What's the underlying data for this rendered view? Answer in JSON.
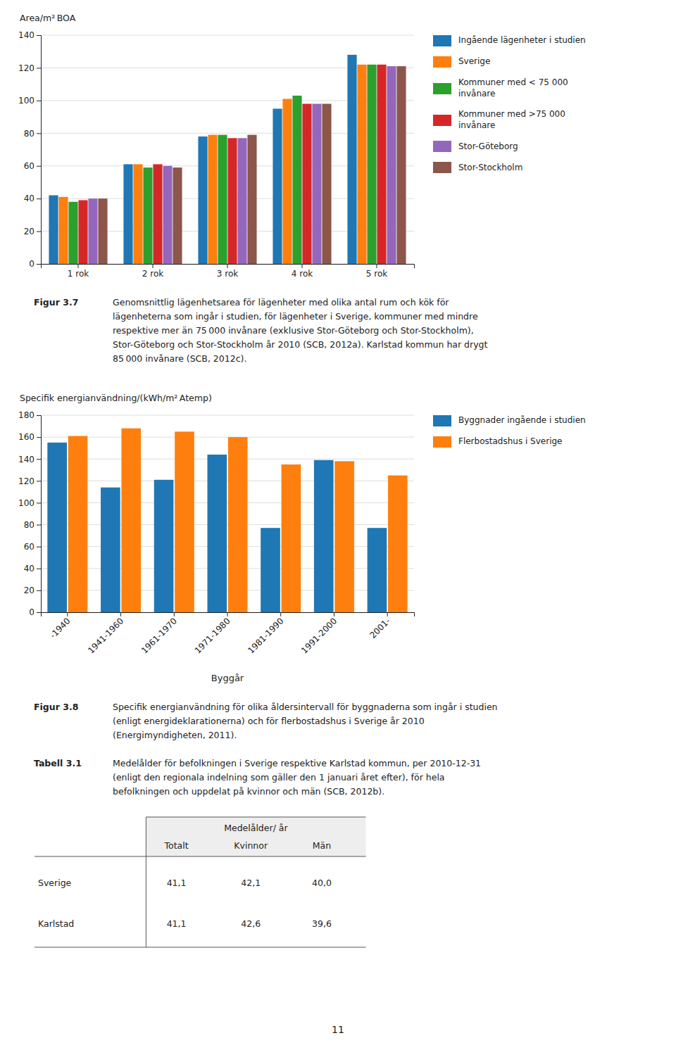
{
  "chart_data": [
    {
      "type": "bar",
      "ylabel": "Area/m² BOA",
      "categories": [
        "1 rok",
        "2 rok",
        "3 rok",
        "4 rok",
        "5 rok"
      ],
      "series": [
        {
          "name": "Ingående lägenheter i studien",
          "values": [
            42,
            61,
            78,
            95,
            128
          ]
        },
        {
          "name": "Sverige",
          "values": [
            41,
            61,
            79,
            101,
            122
          ]
        },
        {
          "name": "Kommuner med < 75 000\ninvånare",
          "values": [
            38,
            59,
            79,
            103,
            122
          ]
        },
        {
          "name": "Kommuner med >75 000\ninvånare",
          "values": [
            39,
            61,
            77,
            98,
            122
          ]
        },
        {
          "name": "Stor-Göteborg",
          "values": [
            40,
            60,
            77,
            98,
            121
          ]
        },
        {
          "name": "Stor-Stockholm",
          "values": [
            40,
            59,
            79,
            98,
            121
          ]
        }
      ],
      "ylim": [
        0,
        140
      ],
      "yticks": [
        0,
        20,
        40,
        60,
        80,
        100,
        120,
        140
      ],
      "grid": true,
      "legend": "right"
    },
    {
      "type": "bar",
      "ylabel": "Specifik energianvändning/(kWh/m² Atemp)",
      "xlabel": "Byggår",
      "categories": [
        "-1940",
        "1941-1960",
        "1961-1970",
        "1971-1980",
        "1981-1990",
        "1991-2000",
        "2001-"
      ],
      "series": [
        {
          "name": "Byggnader ingående i studien",
          "values": [
            155,
            114,
            121,
            144,
            77,
            139,
            77
          ]
        },
        {
          "name": "Flerbostadshus i Sverige",
          "values": [
            161,
            168,
            165,
            160,
            135,
            138,
            125
          ]
        }
      ],
      "ylim": [
        0,
        180
      ],
      "yticks": [
        0,
        20,
        40,
        60,
        80,
        100,
        120,
        140,
        160,
        180
      ],
      "grid": true,
      "legend": "right"
    }
  ],
  "captions": [
    {
      "label": "Figur 3.7",
      "text": "Genomsnittlig lägenhetsarea för lägenheter med olika antal rum och kök för\nlägenheterna som ingår i studien, för lägenheter i Sverige, kommuner med mindre\nrespektive mer än 75 000 invånare (exklusive Stor-Göteborg och Stor-Stockholm),\nStor-Göteborg och Stor-Stockholm år 2010 (SCB, 2012a). Karlstad kommun har drygt\n85 000 invånare (SCB, 2012c)."
    },
    {
      "label": "Figur 3.8",
      "text": "Specifik energianvändning för olika åldersintervall för byggnaderna som ingår i studien\n(enligt energideklarationerna) och för flerbostadshus i Sverige år 2010\n(Energimyndigheten, 2011)."
    },
    {
      "label": "Tabell 3.1",
      "text": "Medelålder för befolkningen i Sverige respektive Karlstad kommun, per 2010-12-31\n(enligt den regionala indelning som gäller den 1 januari året efter), för hela\nbefolkningen och uppdelat på kvinnor och män (SCB, 2012b)."
    }
  ],
  "table": {
    "header_group": "Medelålder/ år",
    "columns": [
      "Totalt",
      "Kvinnor",
      "Män"
    ],
    "rows": [
      [
        "Sverige",
        "41,1",
        "42,1",
        "40,0"
      ],
      [
        "Karlstad",
        "41,1",
        "42,6",
        "39,6"
      ]
    ]
  },
  "page_number": "11"
}
